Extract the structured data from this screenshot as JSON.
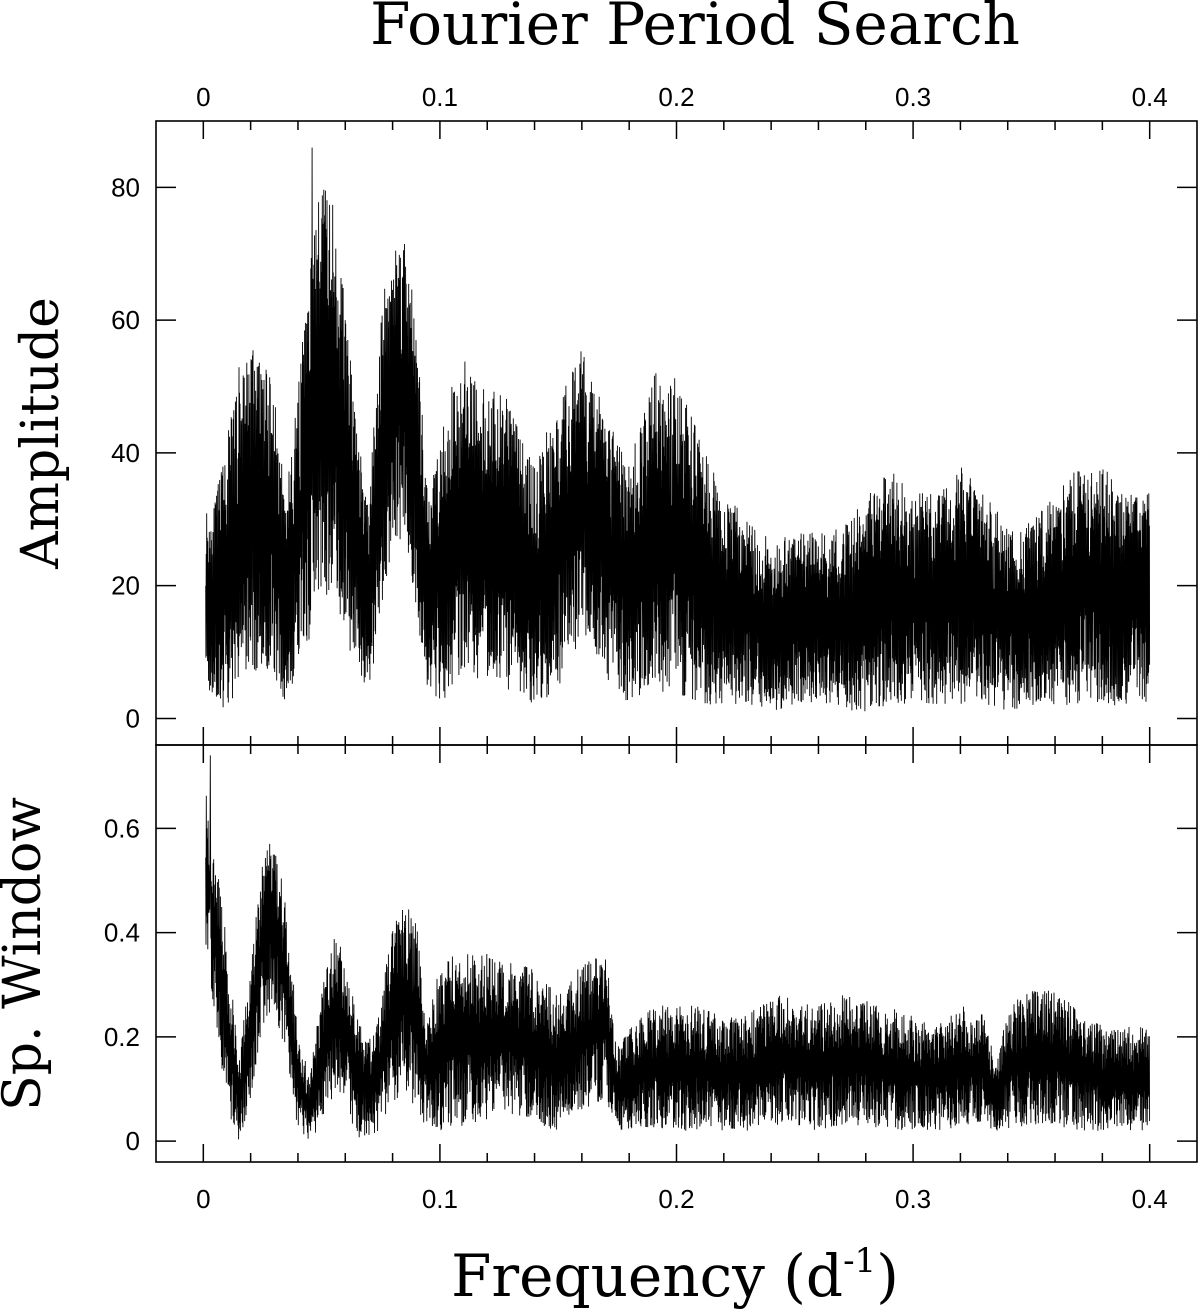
{
  "chart_data": [
    {
      "type": "line",
      "panel": "top",
      "title": "Fourier Period Search",
      "xlabel": "",
      "ylabel": "Amplitude",
      "xlim": [
        -0.02,
        0.42
      ],
      "ylim": [
        -4,
        90
      ],
      "xticks": [
        0,
        0.1,
        0.2,
        0.3,
        0.4
      ],
      "xtick_labels": [
        "0",
        "0.1",
        "0.2",
        "0.3",
        "0.4"
      ],
      "yticks": [
        0,
        20,
        40,
        60,
        80
      ],
      "ytick_labels": [
        "0",
        "20",
        "40",
        "60",
        "80"
      ],
      "grid": false,
      "envelope": {
        "frequency": [
          0.0,
          0.005,
          0.01,
          0.015,
          0.02,
          0.025,
          0.03,
          0.035,
          0.04,
          0.045,
          0.05,
          0.055,
          0.06,
          0.065,
          0.07,
          0.075,
          0.08,
          0.085,
          0.09,
          0.095,
          0.1,
          0.11,
          0.12,
          0.13,
          0.14,
          0.15,
          0.16,
          0.17,
          0.18,
          0.19,
          0.2,
          0.21,
          0.22,
          0.23,
          0.24,
          0.25,
          0.26,
          0.27,
          0.28,
          0.29,
          0.3,
          0.31,
          0.32,
          0.33,
          0.34,
          0.35,
          0.36,
          0.37,
          0.38,
          0.39,
          0.4
        ],
        "center": [
          18,
          17,
          22,
          28,
          33,
          30,
          28,
          18,
          28,
          40,
          50,
          48,
          38,
          25,
          18,
          38,
          48,
          50,
          38,
          18,
          24,
          30,
          28,
          26,
          20,
          26,
          34,
          26,
          20,
          28,
          28,
          22,
          18,
          16,
          14,
          15,
          15,
          15,
          17,
          20,
          18,
          18,
          20,
          18,
          15,
          16,
          18,
          20,
          20,
          18,
          18
        ],
        "halfwidth": [
          14,
          16,
          20,
          25,
          25,
          24,
          22,
          16,
          22,
          28,
          32,
          30,
          26,
          18,
          14,
          24,
          24,
          24,
          22,
          14,
          22,
          24,
          22,
          22,
          18,
          22,
          22,
          20,
          18,
          24,
          24,
          20,
          16,
          14,
          13,
          13,
          13,
          14,
          16,
          18,
          16,
          16,
          18,
          16,
          14,
          14,
          16,
          18,
          18,
          16,
          16
        ]
      },
      "peak": {
        "frequency": 0.046,
        "amplitude": 86
      }
    },
    {
      "type": "line",
      "panel": "bottom",
      "xlabel": "Frequency (d",
      "xlabel_superscript": "-1",
      "xlabel_suffix": ")",
      "ylabel": "Sp. Window",
      "xlim": [
        -0.02,
        0.42
      ],
      "ylim": [
        -0.04,
        0.76
      ],
      "xticks": [
        0,
        0.1,
        0.2,
        0.3,
        0.4
      ],
      "xtick_labels": [
        "0",
        "0.1",
        "0.2",
        "0.3",
        "0.4"
      ],
      "yticks": [
        0,
        0.2,
        0.4,
        0.6
      ],
      "ytick_labels": [
        "0",
        "0.2",
        "0.4",
        "0.6"
      ],
      "grid": false,
      "envelope": {
        "frequency": [
          0.0,
          0.005,
          0.01,
          0.015,
          0.02,
          0.025,
          0.03,
          0.035,
          0.04,
          0.045,
          0.05,
          0.055,
          0.06,
          0.065,
          0.07,
          0.075,
          0.08,
          0.085,
          0.09,
          0.095,
          0.1,
          0.11,
          0.12,
          0.13,
          0.14,
          0.15,
          0.16,
          0.17,
          0.175,
          0.18,
          0.19,
          0.2,
          0.21,
          0.22,
          0.23,
          0.24,
          0.25,
          0.26,
          0.27,
          0.28,
          0.29,
          0.3,
          0.31,
          0.32,
          0.33,
          0.335,
          0.34,
          0.35,
          0.36,
          0.37,
          0.38,
          0.39,
          0.4
        ],
        "center": [
          0.55,
          0.4,
          0.22,
          0.08,
          0.22,
          0.38,
          0.42,
          0.3,
          0.12,
          0.06,
          0.16,
          0.24,
          0.22,
          0.12,
          0.1,
          0.15,
          0.24,
          0.28,
          0.24,
          0.12,
          0.18,
          0.2,
          0.2,
          0.2,
          0.18,
          0.15,
          0.2,
          0.22,
          0.1,
          0.12,
          0.14,
          0.14,
          0.14,
          0.13,
          0.13,
          0.16,
          0.15,
          0.14,
          0.16,
          0.15,
          0.14,
          0.13,
          0.12,
          0.14,
          0.14,
          0.08,
          0.14,
          0.16,
          0.16,
          0.14,
          0.12,
          0.12,
          0.12
        ],
        "halfwidth": [
          0.16,
          0.16,
          0.16,
          0.08,
          0.15,
          0.16,
          0.17,
          0.15,
          0.1,
          0.06,
          0.13,
          0.15,
          0.15,
          0.12,
          0.09,
          0.13,
          0.17,
          0.18,
          0.18,
          0.11,
          0.16,
          0.17,
          0.16,
          0.15,
          0.15,
          0.13,
          0.14,
          0.14,
          0.08,
          0.1,
          0.12,
          0.12,
          0.12,
          0.11,
          0.11,
          0.13,
          0.12,
          0.12,
          0.13,
          0.12,
          0.12,
          0.11,
          0.1,
          0.12,
          0.11,
          0.06,
          0.12,
          0.13,
          0.13,
          0.12,
          0.1,
          0.1,
          0.1
        ]
      },
      "peak": {
        "frequency": 0.003,
        "amplitude": 0.74
      }
    }
  ]
}
